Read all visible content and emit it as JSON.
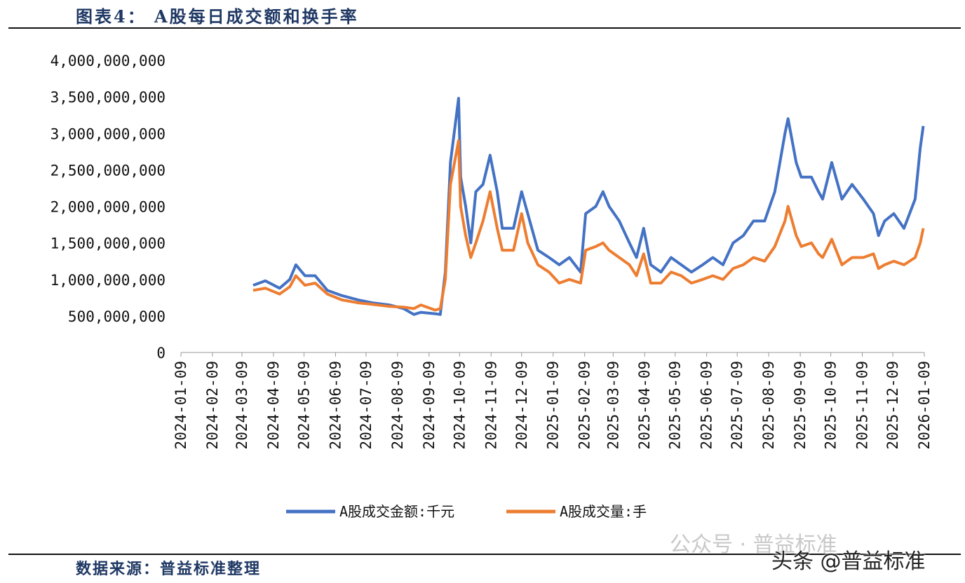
{
  "title": "图表4： A股每日成交额和换手率",
  "source": "数据来源：普益标准整理",
  "watermarks": [
    "公众号 · 普益标准",
    "头条 @普益标准"
  ],
  "chart_data": {
    "type": "line",
    "title": "",
    "xlabel": "",
    "ylabel": "",
    "ylim": [
      0,
      4000000000
    ],
    "yticks": [
      0,
      500000000,
      1000000000,
      1500000000,
      2000000000,
      2500000000,
      3000000000,
      3500000000,
      4000000000
    ],
    "ytick_labels": [
      "0",
      "500,000,000",
      "1,000,000,000",
      "1,500,000,000",
      "2,000,000,000",
      "2,500,000,000",
      "3,000,000,000",
      "3,500,000,000",
      "4,000,000,000"
    ],
    "xticks": [
      "2024-01-09",
      "2024-02-09",
      "2024-03-09",
      "2024-04-09",
      "2024-05-09",
      "2024-06-09",
      "2024-07-09",
      "2024-08-09",
      "2024-09-09",
      "2024-10-09",
      "2024-11-09",
      "2024-12-09",
      "2025-01-09",
      "2025-02-09",
      "2025-03-09",
      "2025-04-09",
      "2025-05-09",
      "2025-06-09",
      "2025-07-09",
      "2025-08-09",
      "2025-09-09",
      "2025-10-09",
      "2025-11-09",
      "2025-12-09",
      "2026-01-09"
    ],
    "xlim": [
      "2024-01-09",
      "2026-01-09"
    ],
    "grid": false,
    "legend_position": "bottom",
    "x": [
      "2024-03-20",
      "2024-04-01",
      "2024-04-15",
      "2024-04-25",
      "2024-05-01",
      "2024-05-10",
      "2024-05-20",
      "2024-06-01",
      "2024-06-15",
      "2024-07-01",
      "2024-07-15",
      "2024-08-01",
      "2024-08-15",
      "2024-08-25",
      "2024-09-01",
      "2024-09-15",
      "2024-09-20",
      "2024-09-25",
      "2024-09-30",
      "2024-10-08",
      "2024-10-10",
      "2024-10-15",
      "2024-10-20",
      "2024-10-25",
      "2024-11-01",
      "2024-11-08",
      "2024-11-15",
      "2024-11-20",
      "2024-12-01",
      "2024-12-09",
      "2024-12-15",
      "2024-12-25",
      "2025-01-05",
      "2025-01-15",
      "2025-01-25",
      "2025-02-05",
      "2025-02-10",
      "2025-02-20",
      "2025-02-27",
      "2025-03-05",
      "2025-03-15",
      "2025-03-25",
      "2025-04-01",
      "2025-04-08",
      "2025-04-15",
      "2025-04-25",
      "2025-05-05",
      "2025-05-15",
      "2025-05-25",
      "2025-06-05",
      "2025-06-15",
      "2025-06-25",
      "2025-07-05",
      "2025-07-15",
      "2025-07-25",
      "2025-08-05",
      "2025-08-15",
      "2025-08-25",
      "2025-08-28",
      "2025-09-05",
      "2025-09-10",
      "2025-09-20",
      "2025-09-27",
      "2025-10-01",
      "2025-10-10",
      "2025-10-20",
      "2025-10-30",
      "2025-11-10",
      "2025-11-20",
      "2025-11-25",
      "2025-12-01",
      "2025-12-10",
      "2025-12-20",
      "2025-12-31",
      "2026-01-05",
      "2026-01-08"
    ],
    "series": [
      {
        "name": "A股成交金额:千元",
        "color": "#4472c4",
        "values": [
          920000000,
          980000000,
          880000000,
          1000000000,
          1200000000,
          1050000000,
          1050000000,
          850000000,
          780000000,
          720000000,
          680000000,
          650000000,
          600000000,
          520000000,
          550000000,
          530000000,
          520000000,
          1100000000,
          2600000000,
          3480000000,
          2400000000,
          2000000000,
          1500000000,
          2200000000,
          2300000000,
          2700000000,
          2200000000,
          1700000000,
          1700000000,
          2200000000,
          1900000000,
          1400000000,
          1300000000,
          1200000000,
          1300000000,
          1100000000,
          1900000000,
          2000000000,
          2200000000,
          2000000000,
          1800000000,
          1500000000,
          1300000000,
          1700000000,
          1200000000,
          1100000000,
          1300000000,
          1200000000,
          1100000000,
          1200000000,
          1300000000,
          1200000000,
          1500000000,
          1600000000,
          1800000000,
          1800000000,
          2200000000,
          3000000000,
          3200000000,
          2600000000,
          2400000000,
          2400000000,
          2200000000,
          2100000000,
          2600000000,
          2100000000,
          2300000000,
          2100000000,
          1900000000,
          1600000000,
          1800000000,
          1900000000,
          1700000000,
          2100000000,
          2800000000,
          3100000000
        ]
      },
      {
        "name": "A股成交量:手",
        "color": "#ed7d31",
        "values": [
          850000000,
          880000000,
          800000000,
          900000000,
          1050000000,
          920000000,
          950000000,
          800000000,
          720000000,
          680000000,
          660000000,
          630000000,
          620000000,
          600000000,
          650000000,
          580000000,
          600000000,
          1000000000,
          2300000000,
          2900000000,
          2000000000,
          1600000000,
          1300000000,
          1500000000,
          1800000000,
          2200000000,
          1700000000,
          1400000000,
          1400000000,
          1900000000,
          1500000000,
          1200000000,
          1100000000,
          950000000,
          1000000000,
          950000000,
          1400000000,
          1450000000,
          1500000000,
          1400000000,
          1300000000,
          1200000000,
          1050000000,
          1350000000,
          950000000,
          950000000,
          1100000000,
          1050000000,
          950000000,
          1000000000,
          1050000000,
          1000000000,
          1150000000,
          1200000000,
          1300000000,
          1250000000,
          1450000000,
          1800000000,
          2000000000,
          1600000000,
          1450000000,
          1500000000,
          1350000000,
          1300000000,
          1550000000,
          1200000000,
          1300000000,
          1300000000,
          1350000000,
          1150000000,
          1200000000,
          1250000000,
          1200000000,
          1300000000,
          1500000000,
          1700000000
        ]
      }
    ]
  }
}
